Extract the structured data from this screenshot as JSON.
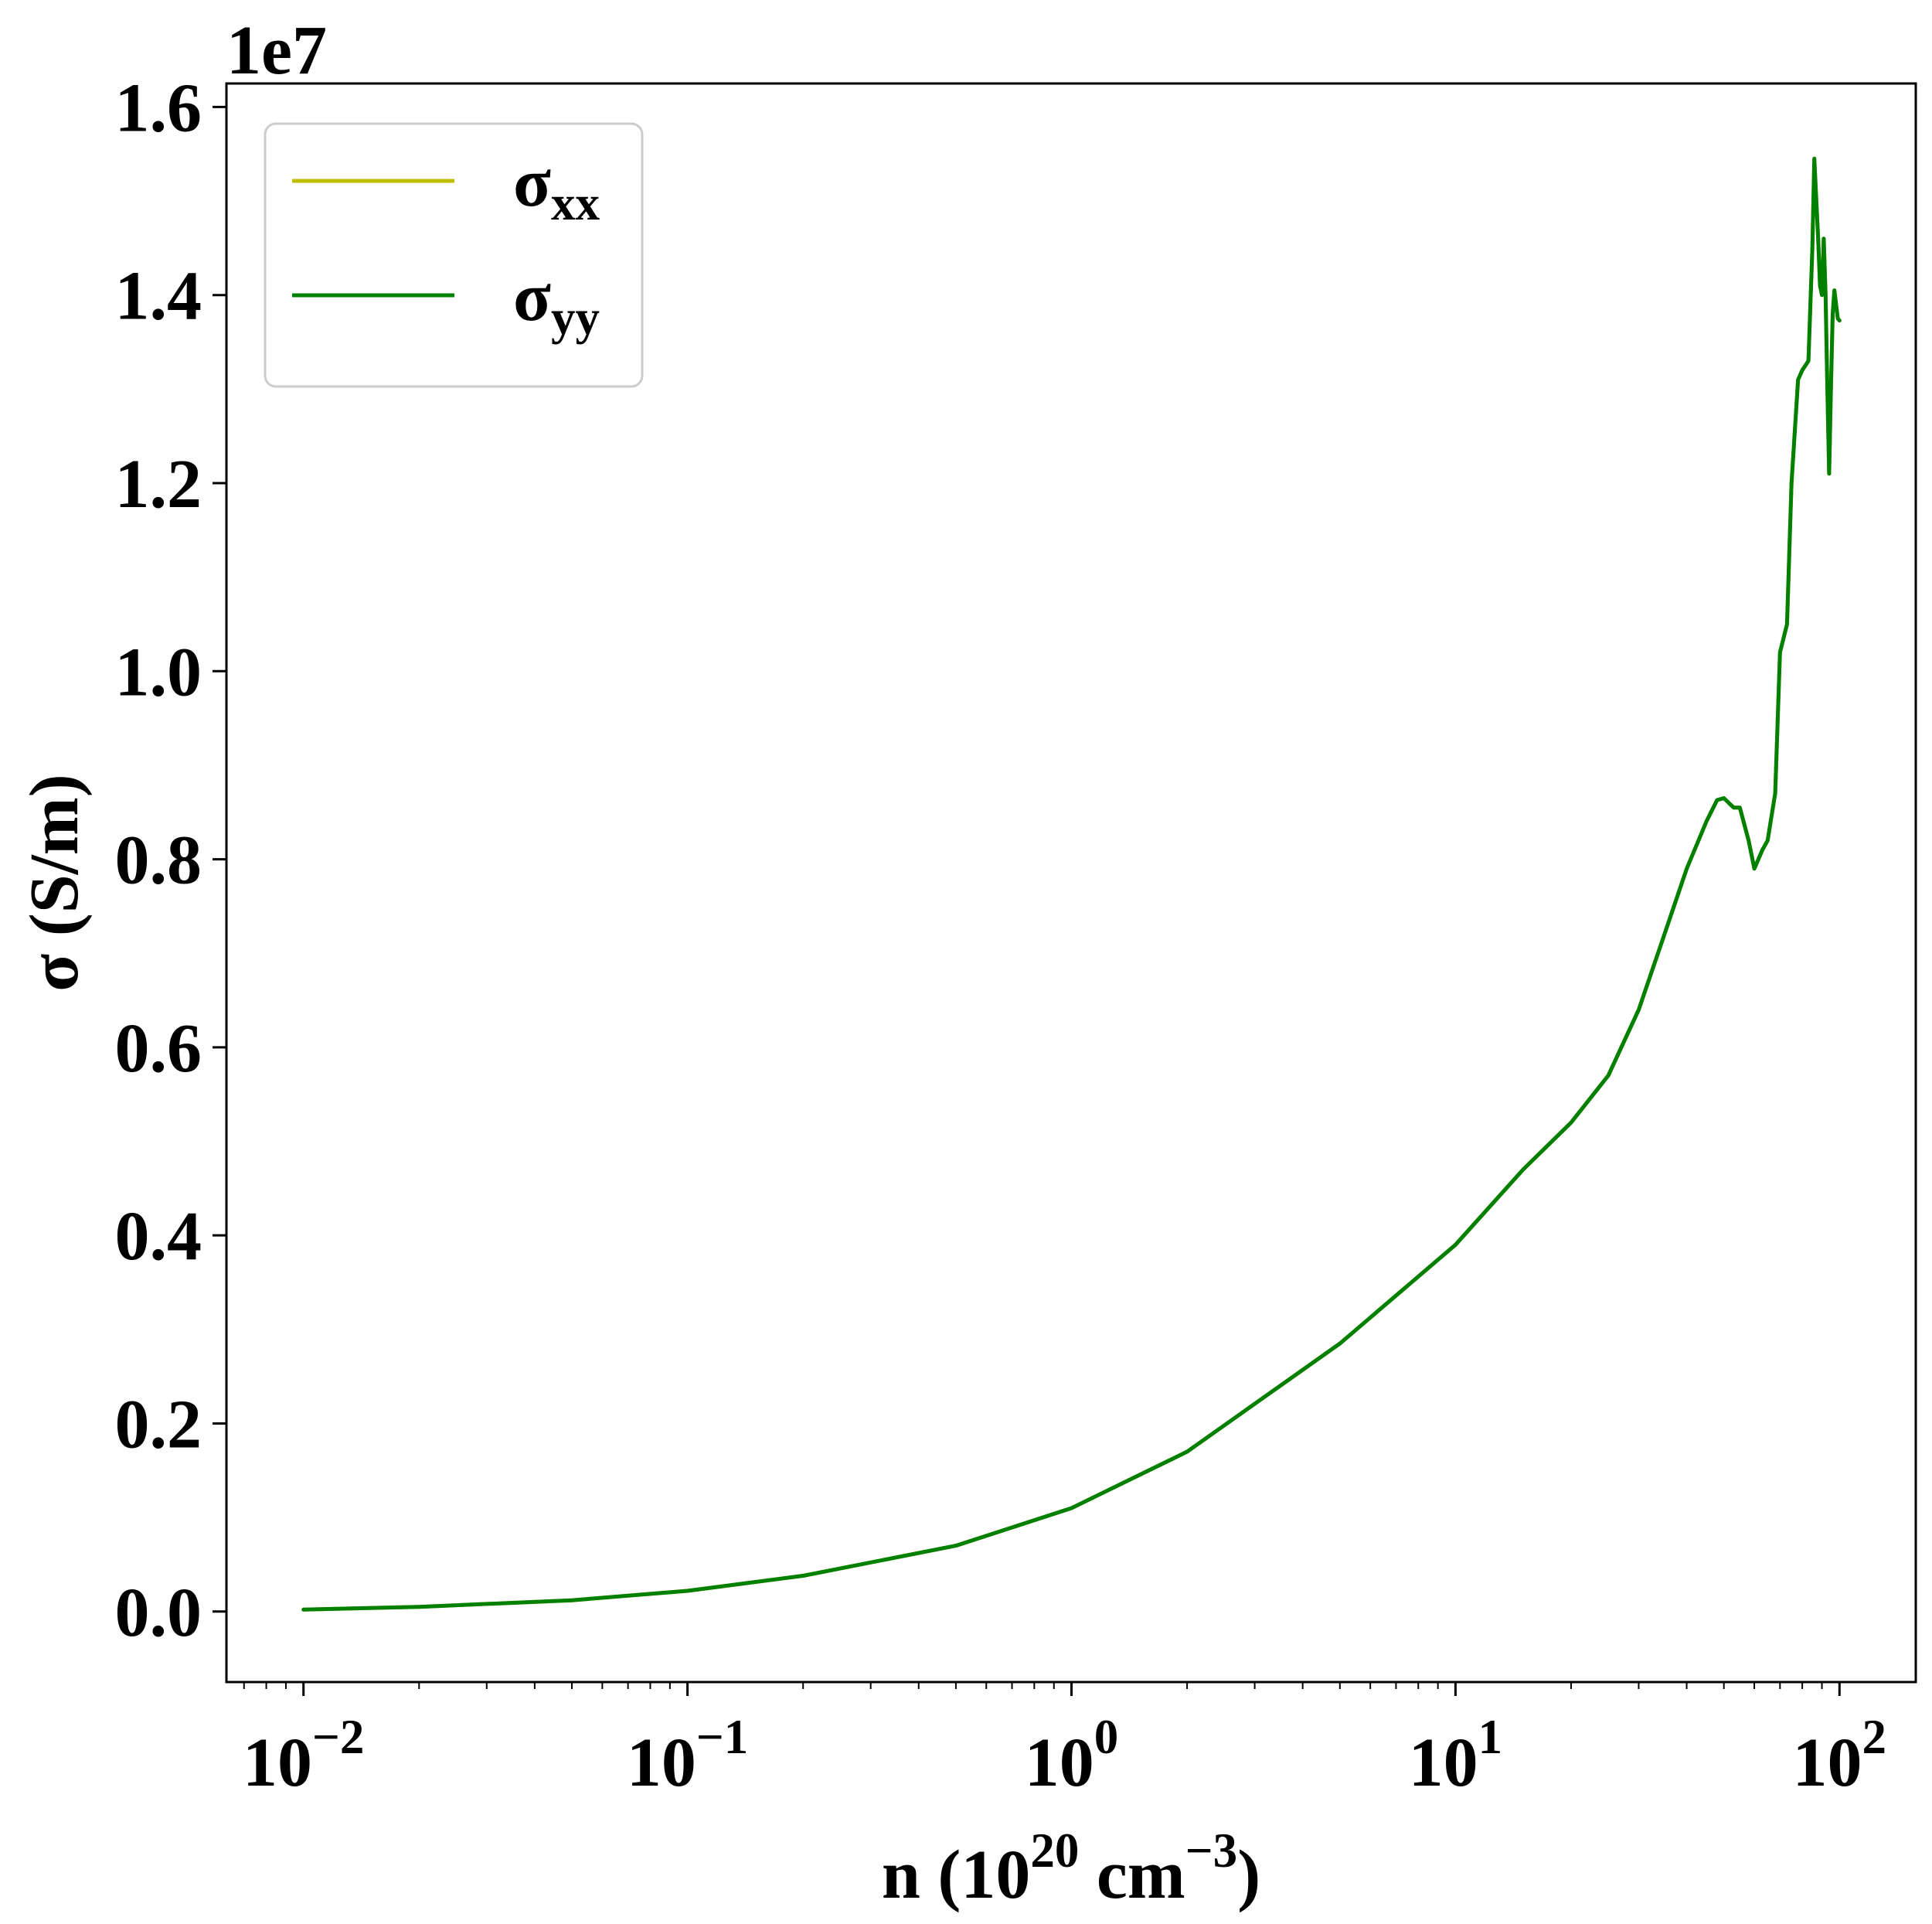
{
  "chart_data": {
    "type": "line",
    "xscale": "log",
    "xlim": [
      0.0063,
      158
    ],
    "ylim": [
      -0.075,
      1.625
    ],
    "y_multiplier": "1e7",
    "xlabel": {
      "base": "n (10",
      "sup1": "20",
      "mid": " cm",
      "sup2": "−3",
      "end": ")"
    },
    "ylabel": "σ (S/m)",
    "x_ticks": [
      {
        "value": 0.01,
        "base": "10",
        "exp": "−2"
      },
      {
        "value": 0.1,
        "base": "10",
        "exp": "−1"
      },
      {
        "value": 1,
        "base": "10",
        "exp": "0"
      },
      {
        "value": 10,
        "base": "10",
        "exp": "1"
      },
      {
        "value": 100,
        "base": "10",
        "exp": "2"
      }
    ],
    "y_ticks": [
      {
        "value": 0.0,
        "label": "0.0"
      },
      {
        "value": 0.2,
        "label": "0.2"
      },
      {
        "value": 0.4,
        "label": "0.4"
      },
      {
        "value": 0.6,
        "label": "0.6"
      },
      {
        "value": 0.8,
        "label": "0.8"
      },
      {
        "value": 1.0,
        "label": "1.0"
      },
      {
        "value": 1.2,
        "label": "1.2"
      },
      {
        "value": 1.4,
        "label": "1.4"
      },
      {
        "value": 1.6,
        "label": "1.6"
      }
    ],
    "legend_position": "top-left",
    "grid": false,
    "series": [
      {
        "name": "σ",
        "name_sub": "xx",
        "color": "#bfbf00",
        "x": [
          0.01,
          0.02,
          0.05,
          0.1,
          0.2,
          0.5,
          1,
          2,
          5,
          10,
          15,
          20,
          25,
          30,
          35,
          40,
          45,
          48,
          50,
          53,
          55,
          58,
          60,
          63,
          65,
          68,
          70,
          73,
          75,
          78,
          80,
          83,
          85,
          86,
          88,
          89,
          90,
          91,
          92,
          93,
          94,
          95,
          96,
          97,
          98,
          99,
          100
        ],
        "values": [
          0.002,
          0.005,
          0.012,
          0.022,
          0.038,
          0.07,
          0.11,
          0.17,
          0.285,
          0.39,
          0.47,
          0.52,
          0.57,
          0.64,
          0.72,
          0.79,
          0.84,
          0.863,
          0.865,
          0.855,
          0.855,
          0.82,
          0.79,
          0.81,
          0.82,
          0.87,
          1.02,
          1.05,
          1.2,
          1.31,
          1.32,
          1.33,
          1.45,
          1.545,
          1.46,
          1.41,
          1.4,
          1.46,
          1.4,
          1.3,
          1.21,
          1.3,
          1.38,
          1.405,
          1.39,
          1.375,
          1.373
        ]
      },
      {
        "name": "σ",
        "name_sub": "yy",
        "color": "#008000",
        "x": [
          0.01,
          0.02,
          0.05,
          0.1,
          0.2,
          0.5,
          1,
          2,
          5,
          10,
          15,
          20,
          25,
          30,
          35,
          40,
          45,
          48,
          50,
          53,
          55,
          58,
          60,
          63,
          65,
          68,
          70,
          73,
          75,
          78,
          80,
          83,
          85,
          86,
          88,
          89,
          90,
          91,
          92,
          93,
          94,
          95,
          96,
          97,
          98,
          99,
          100
        ],
        "values": [
          0.002,
          0.005,
          0.012,
          0.022,
          0.038,
          0.07,
          0.11,
          0.17,
          0.285,
          0.39,
          0.47,
          0.52,
          0.57,
          0.64,
          0.72,
          0.79,
          0.84,
          0.863,
          0.865,
          0.855,
          0.855,
          0.82,
          0.79,
          0.81,
          0.82,
          0.87,
          1.02,
          1.05,
          1.2,
          1.31,
          1.32,
          1.33,
          1.45,
          1.545,
          1.46,
          1.41,
          1.4,
          1.46,
          1.4,
          1.3,
          1.21,
          1.3,
          1.38,
          1.405,
          1.39,
          1.375,
          1.373
        ]
      }
    ]
  }
}
